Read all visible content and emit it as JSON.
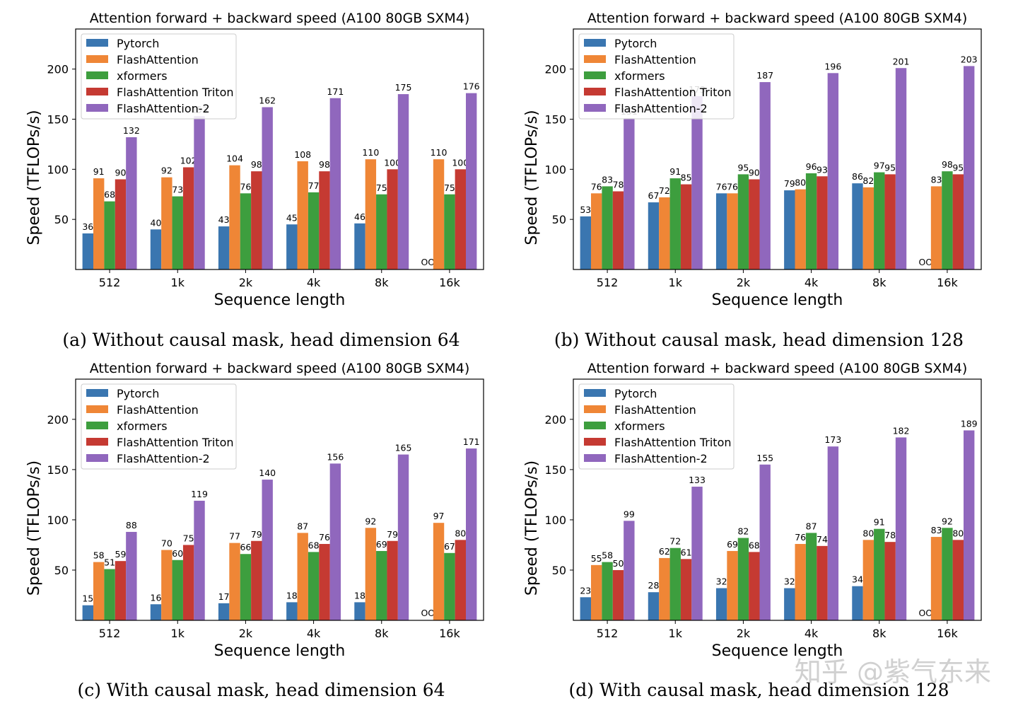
{
  "colors": {
    "Pytorch": "#3a76b0",
    "FlashAttention": "#ef8636",
    "xformers": "#3d9e3e",
    "FlashAttention Triton": "#c53a32",
    "FlashAttention-2": "#9067bd"
  },
  "watermark": "知乎 @紫气东来",
  "chart_data": [
    {
      "type": "bar",
      "title": "Attention forward + backward speed (A100 80GB SXM4)",
      "caption": "(a) Without causal mask, head dimension 64",
      "xlabel": "Sequence length",
      "ylabel": "Speed (TFLOPs/s)",
      "ylim": [
        0,
        240
      ],
      "yticks": [
        50,
        100,
        150,
        200
      ],
      "legend_position": "upper-left",
      "missing_label": "OOM",
      "categories": [
        "512",
        "1k",
        "2k",
        "4k",
        "8k",
        "16k"
      ],
      "series": [
        {
          "name": "Pytorch",
          "values": [
            36,
            40,
            43,
            45,
            46,
            null
          ]
        },
        {
          "name": "FlashAttention",
          "values": [
            91,
            92,
            104,
            108,
            110,
            110
          ]
        },
        {
          "name": "xformers",
          "values": [
            68,
            73,
            76,
            77,
            75,
            75
          ]
        },
        {
          "name": "FlashAttention Triton",
          "values": [
            90,
            102,
            98,
            98,
            100,
            100
          ]
        },
        {
          "name": "FlashAttention-2",
          "values": [
            132,
            153,
            162,
            171,
            175,
            176
          ]
        }
      ]
    },
    {
      "type": "bar",
      "title": "Attention forward + backward speed (A100 80GB SXM4)",
      "caption": "(b) Without causal mask, head dimension 128",
      "xlabel": "Sequence length",
      "ylabel": "Speed (TFLOPs/s)",
      "ylim": [
        0,
        240
      ],
      "yticks": [
        50,
        100,
        150,
        200
      ],
      "legend_position": "upper-left",
      "missing_label": "OOM",
      "categories": [
        "512",
        "1k",
        "2k",
        "4k",
        "8k",
        "16k"
      ],
      "series": [
        {
          "name": "Pytorch",
          "values": [
            53,
            67,
            76,
            79,
            86,
            null
          ]
        },
        {
          "name": "FlashAttention",
          "values": [
            76,
            72,
            76,
            80,
            82,
            83
          ]
        },
        {
          "name": "xformers",
          "values": [
            83,
            91,
            95,
            96,
            97,
            98
          ]
        },
        {
          "name": "FlashAttention Triton",
          "values": [
            78,
            85,
            90,
            93,
            95,
            95
          ]
        },
        {
          "name": "FlashAttention-2",
          "values": [
            151,
            173,
            187,
            196,
            201,
            203
          ]
        }
      ]
    },
    {
      "type": "bar",
      "title": "Attention forward + backward speed (A100 80GB SXM4)",
      "caption": "(c) With causal mask, head dimension 64",
      "xlabel": "Sequence length",
      "ylabel": "Speed (TFLOPs/s)",
      "ylim": [
        0,
        240
      ],
      "yticks": [
        50,
        100,
        150,
        200
      ],
      "legend_position": "upper-left",
      "missing_label": "OOM",
      "categories": [
        "512",
        "1k",
        "2k",
        "4k",
        "8k",
        "16k"
      ],
      "series": [
        {
          "name": "Pytorch",
          "values": [
            15,
            16,
            17,
            18,
            18,
            null
          ]
        },
        {
          "name": "FlashAttention",
          "values": [
            58,
            70,
            77,
            87,
            92,
            97
          ]
        },
        {
          "name": "xformers",
          "values": [
            51,
            60,
            66,
            68,
            69,
            67
          ]
        },
        {
          "name": "FlashAttention Triton",
          "values": [
            59,
            75,
            79,
            76,
            79,
            80
          ]
        },
        {
          "name": "FlashAttention-2",
          "values": [
            88,
            119,
            140,
            156,
            165,
            171
          ]
        }
      ]
    },
    {
      "type": "bar",
      "title": "Attention forward + backward speed (A100 80GB SXM4)",
      "caption": "(d) With causal mask, head dimension 128",
      "xlabel": "Sequence length",
      "ylabel": "Speed (TFLOPs/s)",
      "ylim": [
        0,
        240
      ],
      "yticks": [
        50,
        100,
        150,
        200
      ],
      "legend_position": "upper-left",
      "missing_label": "OOM",
      "categories": [
        "512",
        "1k",
        "2k",
        "4k",
        "8k",
        "16k"
      ],
      "series": [
        {
          "name": "Pytorch",
          "values": [
            23,
            28,
            32,
            32,
            34,
            null
          ]
        },
        {
          "name": "FlashAttention",
          "values": [
            55,
            62,
            69,
            76,
            80,
            83
          ]
        },
        {
          "name": "xformers",
          "values": [
            58,
            72,
            82,
            87,
            91,
            92
          ]
        },
        {
          "name": "FlashAttention Triton",
          "values": [
            50,
            61,
            68,
            74,
            78,
            80
          ]
        },
        {
          "name": "FlashAttention-2",
          "values": [
            99,
            133,
            155,
            173,
            182,
            189
          ]
        }
      ]
    }
  ]
}
